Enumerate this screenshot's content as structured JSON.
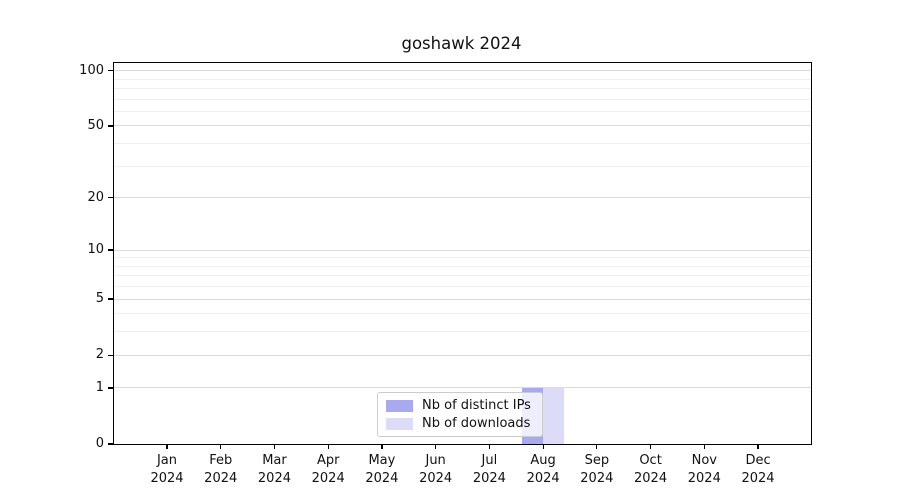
{
  "title": "goshawk 2024",
  "colors": {
    "distinct_ips": "#a9a9f0",
    "downloads": "#dcdcf8",
    "grid_major": "#d9d9d9",
    "grid_minor": "#efefef",
    "spine": "#000000"
  },
  "legend": {
    "items": [
      {
        "label": "Nb of distinct IPs",
        "color": "#a9a9f0"
      },
      {
        "label": "Nb of downloads",
        "color": "#dcdcf8"
      }
    ]
  },
  "chart_data": {
    "type": "bar",
    "title": "goshawk 2024",
    "categories": [
      "Jan 2024",
      "Feb 2024",
      "Mar 2024",
      "Apr 2024",
      "May 2024",
      "Jun 2024",
      "Jul 2024",
      "Aug 2024",
      "Sep 2024",
      "Oct 2024",
      "Nov 2024",
      "Dec 2024"
    ],
    "series": [
      {
        "name": "Nb of distinct IPs",
        "color": "#a9a9f0",
        "values": [
          0,
          0,
          0,
          0,
          0,
          0,
          0,
          1,
          0,
          0,
          0,
          0
        ]
      },
      {
        "name": "Nb of downloads",
        "color": "#dcdcf8",
        "values": [
          0,
          0,
          0,
          0,
          0,
          0,
          0,
          1,
          0,
          0,
          0,
          0
        ]
      }
    ],
    "yscale": "log1p",
    "ylim": [
      0,
      110
    ],
    "y_major_ticks": [
      0,
      1,
      2,
      5,
      10,
      20,
      50,
      100
    ],
    "y_minor_ticks": [
      3,
      4,
      6,
      7,
      8,
      9,
      30,
      40,
      60,
      70,
      80,
      90
    ],
    "grid": "horizontal-only",
    "legend_position": "lower-center-inside",
    "bar_layout": "grouped-pair-centered-on-tick"
  }
}
